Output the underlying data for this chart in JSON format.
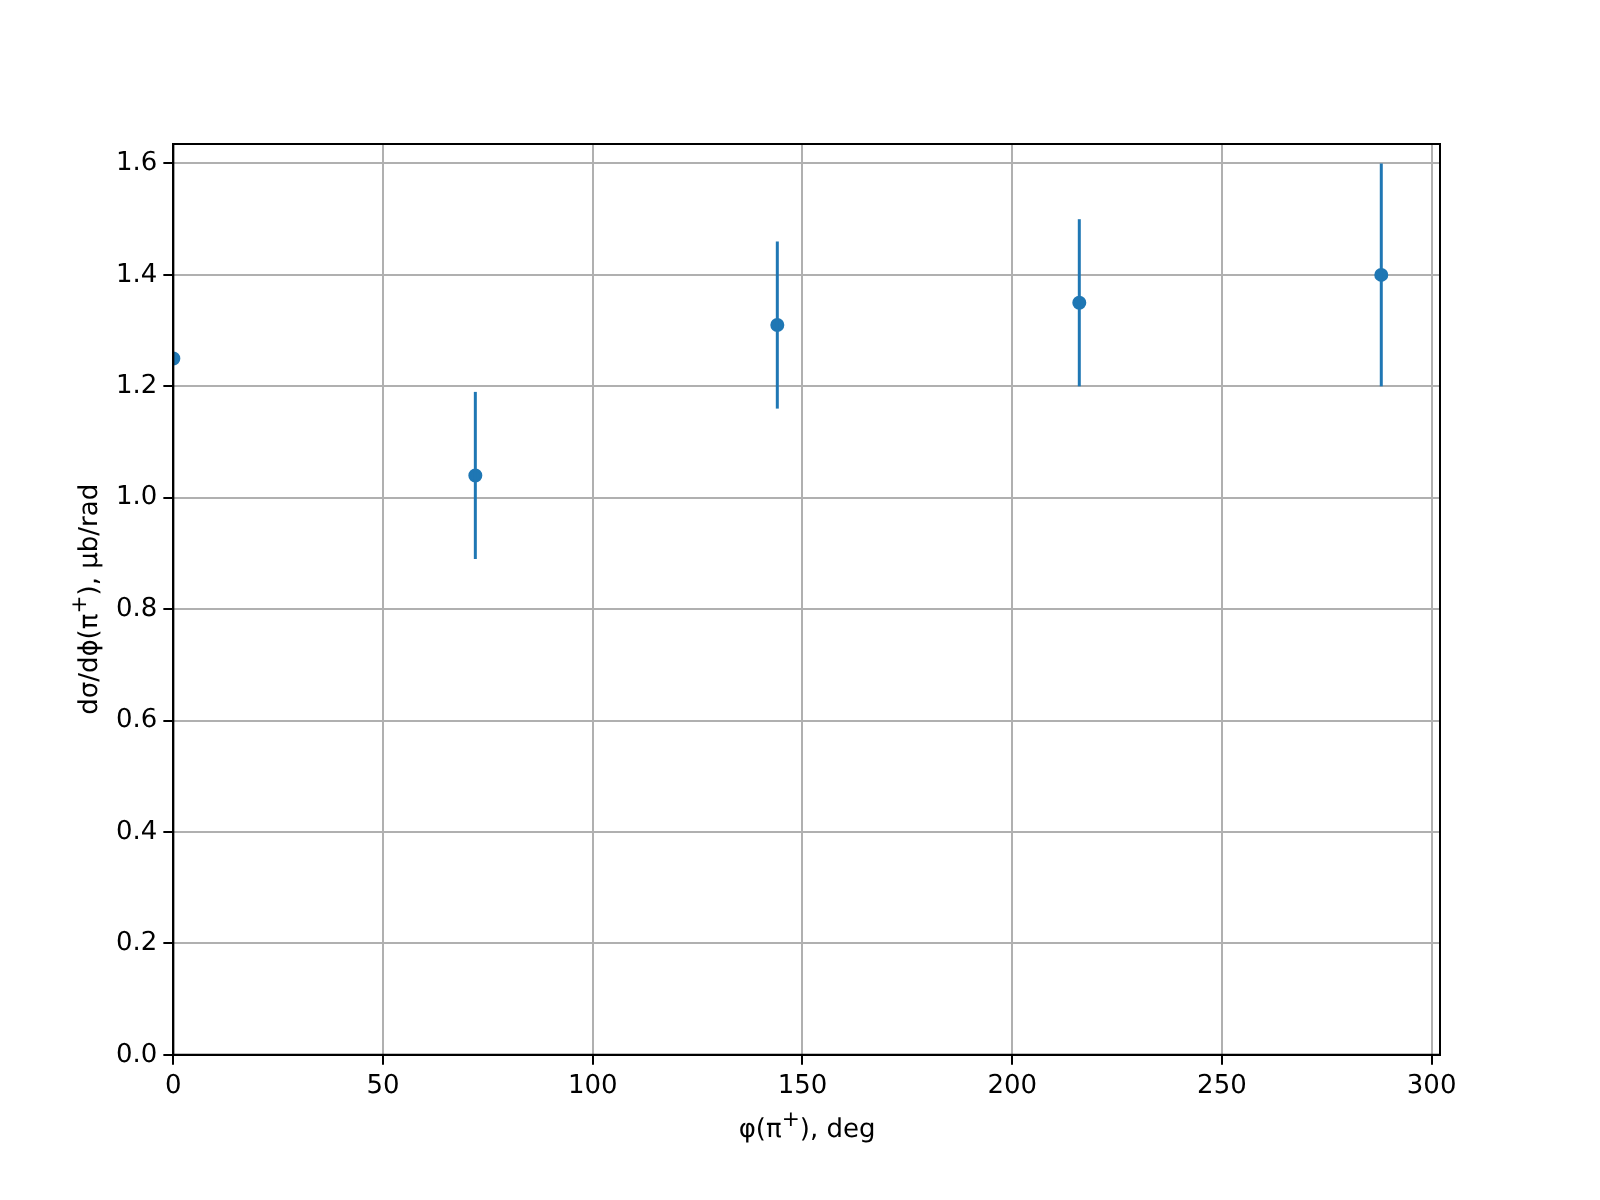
{
  "chart_data": {
    "type": "scatter",
    "xlabel": "φ(π$^{+}$), deg",
    "ylabel": "dσ/dϕ(π$^{+}$), μb/rad",
    "x": [
      0,
      72,
      144,
      216,
      288
    ],
    "series": [
      {
        "color": "#1f77b4",
        "values": [
          1.25,
          1.04,
          1.31,
          1.35,
          1.4
        ],
        "errors": [
          null,
          0.15,
          0.15,
          0.15,
          0.2
        ]
      }
    ],
    "xlim": [
      0,
      302
    ],
    "xticks": [
      0,
      50,
      100,
      150,
      200,
      250,
      300
    ],
    "ylim": [
      0,
      1.635
    ],
    "yticks": [
      {
        "value": 0,
        "label": "0.0"
      },
      0.2,
      0.4,
      0.6,
      0.8,
      {
        "value": 1,
        "label": "1.0"
      },
      1.2,
      1.4,
      1.6
    ],
    "grid": true,
    "marker": "circle",
    "legend": false
  }
}
